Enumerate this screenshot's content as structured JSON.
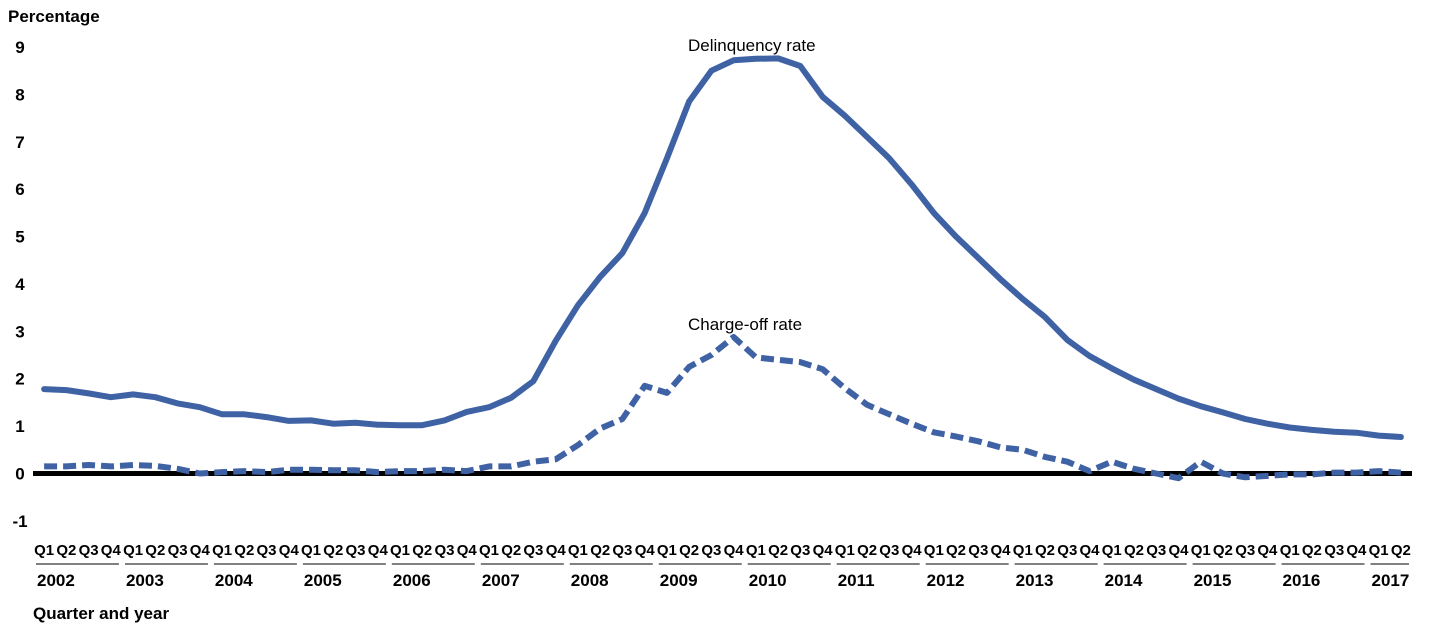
{
  "chart_data": {
    "type": "line",
    "ylabel": "Percentage",
    "xlabel": "Quarter and year",
    "ylim": [
      -1,
      9
    ],
    "yticks": [
      "9",
      "8",
      "7",
      "6",
      "5",
      "4",
      "3",
      "2",
      "1",
      "0",
      "-1"
    ],
    "years": [
      "2002",
      "2003",
      "2004",
      "2005",
      "2006",
      "2007",
      "2008",
      "2009",
      "2010",
      "2011",
      "2012",
      "2013",
      "2014",
      "2015",
      "2016",
      "2017"
    ],
    "quarter_labels": [
      "Q1",
      "Q2",
      "Q3",
      "Q4"
    ],
    "n_quarters": 62,
    "series": [
      {
        "name": "Delinquency rate",
        "style": "solid",
        "color": "#3f62a5",
        "values": [
          1.78,
          1.76,
          1.69,
          1.61,
          1.67,
          1.61,
          1.48,
          1.4,
          1.25,
          1.25,
          1.19,
          1.11,
          1.12,
          1.05,
          1.07,
          1.03,
          1.02,
          1.02,
          1.12,
          1.3,
          1.4,
          1.6,
          1.95,
          2.8,
          3.55,
          4.15,
          4.65,
          5.5,
          6.65,
          7.85,
          8.5,
          8.72,
          8.75,
          8.76,
          8.6,
          7.95,
          7.55,
          7.1,
          6.65,
          6.1,
          5.5,
          5.0,
          4.55,
          4.1,
          3.68,
          3.3,
          2.82,
          2.48,
          2.22,
          1.98,
          1.78,
          1.58,
          1.42,
          1.29,
          1.15,
          1.05,
          0.97,
          0.92,
          0.88,
          0.86,
          0.8,
          0.77
        ]
      },
      {
        "name": "Charge-off rate",
        "style": "dashed",
        "color": "#3f62a5",
        "values": [
          0.15,
          0.15,
          0.18,
          0.15,
          0.18,
          0.16,
          0.1,
          0.0,
          0.03,
          0.05,
          0.03,
          0.08,
          0.08,
          0.07,
          0.07,
          0.03,
          0.05,
          0.05,
          0.08,
          0.05,
          0.15,
          0.15,
          0.25,
          0.3,
          0.6,
          0.95,
          1.15,
          1.85,
          1.7,
          2.25,
          2.5,
          2.88,
          2.45,
          2.4,
          2.35,
          2.2,
          1.8,
          1.45,
          1.25,
          1.05,
          0.87,
          0.78,
          0.68,
          0.55,
          0.5,
          0.35,
          0.25,
          0.05,
          0.25,
          0.1,
          0.0,
          -0.1,
          0.25,
          0.0,
          -0.08,
          -0.05,
          -0.02,
          -0.02,
          0.02,
          0.02,
          0.05,
          0.02
        ]
      }
    ],
    "annotations": [
      "Delinquency rate",
      "Charge-off rate"
    ],
    "grid": false,
    "legend": "none"
  }
}
